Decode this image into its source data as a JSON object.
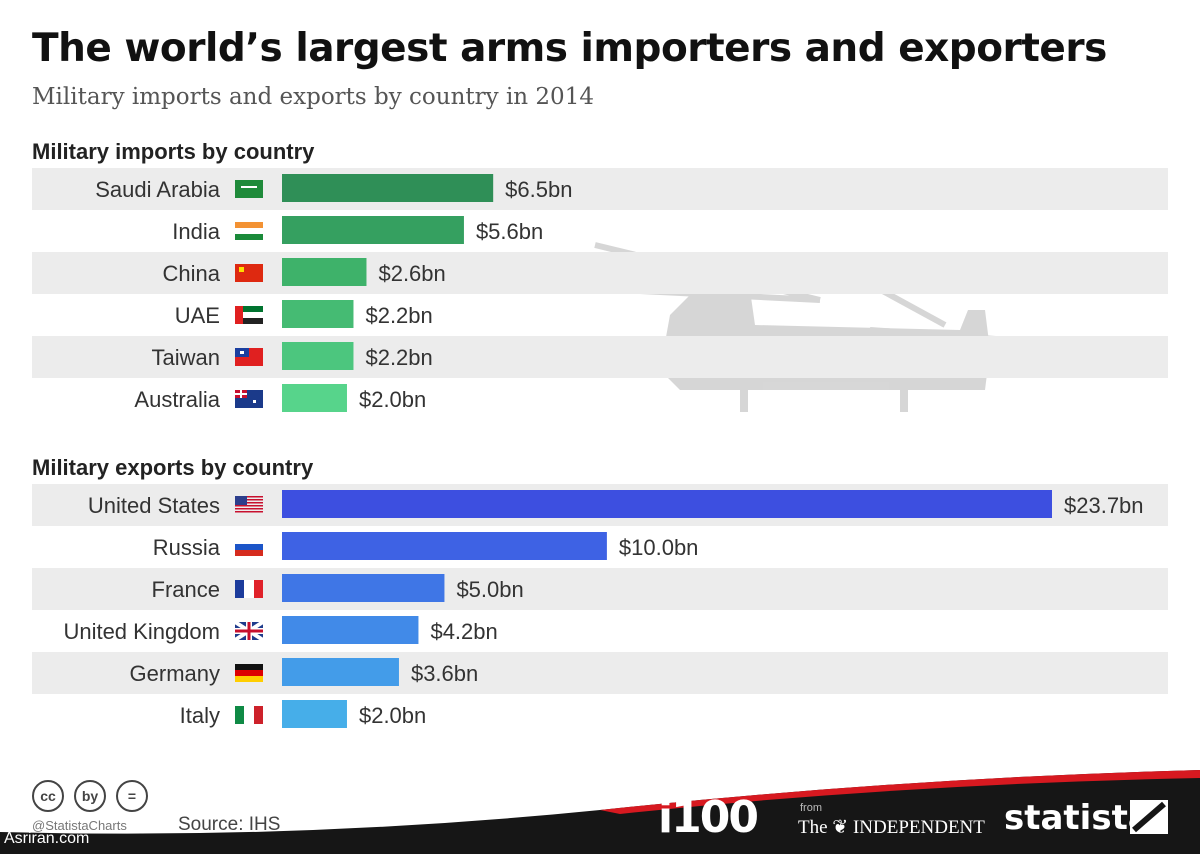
{
  "title": "The world’s largest arms importers and exporters",
  "subtitle": "Military imports and exports by country in 2014",
  "imports_heading": "Military imports by country",
  "exports_heading": "Military exports by country",
  "chart_data": [
    {
      "type": "bar",
      "orientation": "horizontal",
      "title": "Military imports by country",
      "categories": [
        "Saudi Arabia",
        "India",
        "China",
        "UAE",
        "Taiwan",
        "Australia"
      ],
      "values": [
        6.5,
        5.6,
        2.6,
        2.2,
        2.2,
        2.0
      ],
      "labels": [
        "$6.5bn",
        "$5.6bn",
        "$2.6bn",
        "$2.2bn",
        "$2.2bn",
        "$2.0bn"
      ],
      "colors": [
        "#2f8f57",
        "#35a060",
        "#3eb26a",
        "#45bb73",
        "#4cc67e",
        "#57d48b"
      ],
      "grid": false
    },
    {
      "type": "bar",
      "orientation": "horizontal",
      "title": "Military exports by country",
      "categories": [
        "United States",
        "Russia",
        "France",
        "United Kingdom",
        "Germany",
        "Italy"
      ],
      "values": [
        23.7,
        10.0,
        5.0,
        4.2,
        3.6,
        2.0
      ],
      "labels": [
        "$23.7bn",
        "$10.0bn",
        "$5.0bn",
        "$4.2bn",
        "$3.6bn",
        "$2.0bn"
      ],
      "colors": [
        "#3d4fe0",
        "#3e62e4",
        "#3f76e6",
        "#418ae8",
        "#439ce9",
        "#46aee9"
      ],
      "grid": false
    }
  ],
  "footer": {
    "cc_icons": [
      "cc",
      "by",
      "="
    ],
    "handle": "@StatistaCharts",
    "source": "Source: IHS",
    "i100": "i100",
    "from": "from",
    "independent": "The ❦ INDEPENDENT",
    "statista": "statista",
    "watermark": "Asriran.com"
  },
  "colors": {
    "band": "#161616",
    "accent": "#d71920",
    "rowStripe": "#ececec"
  }
}
